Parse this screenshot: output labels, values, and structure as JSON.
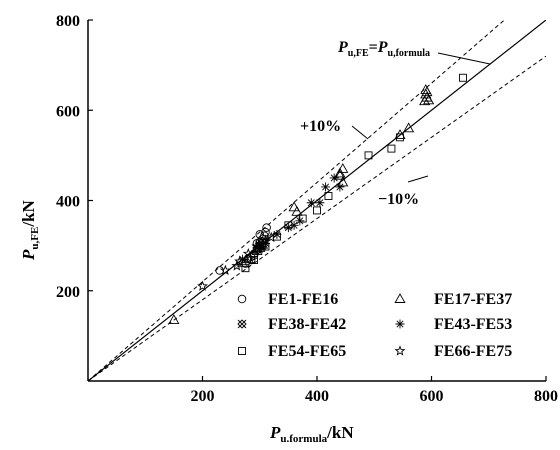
{
  "chart_data": {
    "type": "scatter",
    "xlabel": "P_u.formula/kN",
    "xlabel_main": "P",
    "xlabel_sub": "u.formula",
    "xlabel_unit": "/kN",
    "ylabel": "P_u,FE/kN",
    "ylabel_main": "P",
    "ylabel_sub": "u,FE",
    "ylabel_unit": "/kN",
    "xlim": [
      0,
      800
    ],
    "ylim": [
      0,
      800
    ],
    "xticks": [
      "200",
      "400",
      "600",
      "800"
    ],
    "yticks": [
      "200",
      "400",
      "600",
      "800"
    ],
    "grid": false,
    "legend_placement": "bottom-right",
    "reference_lines": {
      "equality_label": {
        "p1": "P",
        "s1": "u,FE",
        "eq": "=",
        "p2": "P",
        "s2": "u,formula"
      },
      "plus_label": "+10%",
      "minus_label": "−10%"
    },
    "series": [
      {
        "name": "FE1-FE16",
        "marker": "circle",
        "points": [
          [
            230,
            245
          ],
          [
            275,
            260
          ],
          [
            280,
            272
          ],
          [
            285,
            275
          ],
          [
            290,
            282
          ],
          [
            295,
            290
          ],
          [
            300,
            300
          ],
          [
            305,
            315
          ],
          [
            310,
            330
          ],
          [
            312,
            340
          ],
          [
            300,
            325
          ],
          [
            295,
            305
          ],
          [
            285,
            268
          ],
          [
            300,
            308
          ],
          [
            308,
            322
          ],
          [
            290,
            278
          ]
        ]
      },
      {
        "name": "FE17-FE37",
        "marker": "triangle",
        "points": [
          [
            150,
            135
          ],
          [
            270,
            262
          ],
          [
            280,
            270
          ],
          [
            300,
            295
          ],
          [
            360,
            385
          ],
          [
            365,
            375
          ],
          [
            440,
            460
          ],
          [
            445,
            470
          ],
          [
            440,
            455
          ],
          [
            445,
            440
          ],
          [
            590,
            645
          ],
          [
            592,
            640
          ],
          [
            590,
            635
          ],
          [
            592,
            628
          ],
          [
            595,
            622
          ],
          [
            588,
            620
          ],
          [
            560,
            560
          ],
          [
            545,
            545
          ],
          [
            300,
            300
          ],
          [
            295,
            288
          ],
          [
            305,
            302
          ]
        ]
      },
      {
        "name": "FE38-FE42",
        "marker": "crossed-box",
        "points": [
          [
            295,
            295
          ],
          [
            300,
            300
          ],
          [
            302,
            305
          ],
          [
            298,
            292
          ],
          [
            305,
            310
          ]
        ]
      },
      {
        "name": "FE43-FE53",
        "marker": "asterisk",
        "points": [
          [
            270,
            270
          ],
          [
            310,
            305
          ],
          [
            330,
            325
          ],
          [
            350,
            340
          ],
          [
            370,
            355
          ],
          [
            390,
            395
          ],
          [
            405,
            395
          ],
          [
            430,
            450
          ],
          [
            440,
            430
          ],
          [
            415,
            430
          ],
          [
            360,
            345
          ]
        ]
      },
      {
        "name": "FE54-FE65",
        "marker": "square",
        "points": [
          [
            275,
            250
          ],
          [
            290,
            268
          ],
          [
            310,
            298
          ],
          [
            330,
            320
          ],
          [
            350,
            345
          ],
          [
            375,
            360
          ],
          [
            400,
            378
          ],
          [
            420,
            410
          ],
          [
            490,
            500
          ],
          [
            530,
            515
          ],
          [
            545,
            540
          ],
          [
            655,
            672
          ]
        ]
      },
      {
        "name": "FE66-FE75",
        "marker": "star",
        "points": [
          [
            200,
            210
          ],
          [
            240,
            245
          ],
          [
            260,
            255
          ],
          [
            265,
            265
          ],
          [
            280,
            282
          ],
          [
            295,
            298
          ],
          [
            300,
            302
          ],
          [
            305,
            300
          ],
          [
            310,
            312
          ],
          [
            320,
            318
          ]
        ]
      }
    ]
  }
}
